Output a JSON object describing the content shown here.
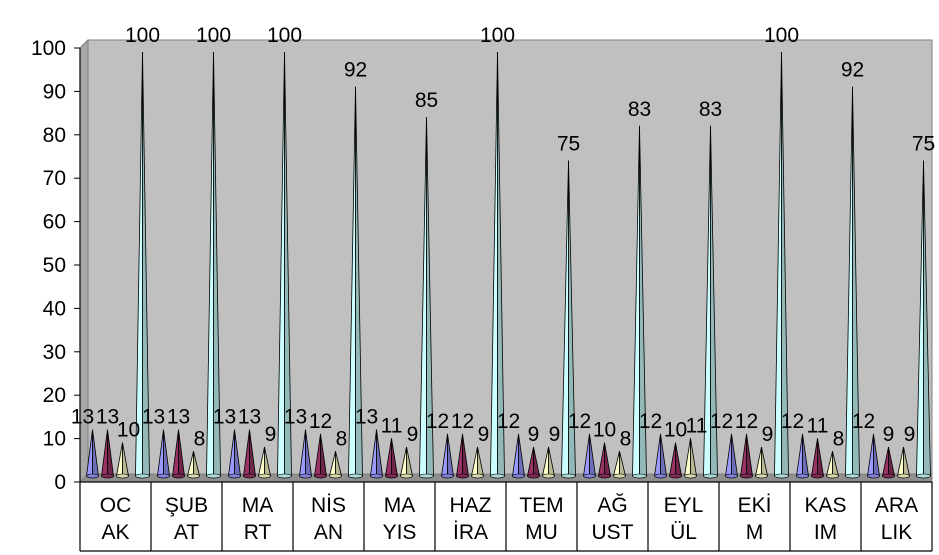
{
  "chart_data": {
    "type": "bar",
    "bar_shape": "cone",
    "categories": [
      [
        "OC",
        "AK"
      ],
      [
        "ŞUB",
        "AT"
      ],
      [
        "MA",
        "RT"
      ],
      [
        "NİS",
        "AN"
      ],
      [
        "MA",
        "YIS"
      ],
      [
        "HAZ",
        "İRA"
      ],
      [
        "TEM",
        "MU"
      ],
      [
        "AĞ",
        "UST"
      ],
      [
        "EYL",
        "ÜL"
      ],
      [
        "EKİ",
        "M"
      ],
      [
        "KAS",
        "IM"
      ],
      [
        "ARA",
        "LIK"
      ]
    ],
    "series": [
      {
        "color": "#9999ff",
        "values": [
          13,
          13,
          13,
          13,
          13,
          12,
          12,
          12,
          12,
          12,
          12,
          12
        ]
      },
      {
        "color": "#993366",
        "values": [
          13,
          13,
          13,
          12,
          11,
          12,
          9,
          10,
          10,
          12,
          11,
          9
        ]
      },
      {
        "color": "#ffffcc",
        "values": [
          10,
          8,
          9,
          8,
          9,
          9,
          9,
          8,
          11,
          9,
          8,
          9
        ]
      },
      {
        "color": "#ccffff",
        "values": [
          100,
          100,
          100,
          92,
          85,
          100,
          75,
          83,
          83,
          100,
          92,
          75
        ]
      }
    ],
    "data_labels": [
      [
        "13",
        "13",
        "10",
        "100"
      ],
      [
        "13",
        "13",
        "8",
        "100"
      ],
      [
        "13",
        "13",
        "9",
        "100"
      ],
      [
        "13",
        "12",
        "8",
        "92"
      ],
      [
        "13",
        "11",
        "9",
        "85"
      ],
      [
        "12",
        "12",
        "9",
        "100"
      ],
      [
        "12",
        "9",
        "9",
        "75"
      ],
      [
        "12",
        "10",
        "8",
        "83"
      ],
      [
        "12",
        "10",
        "11",
        "83"
      ],
      [
        "12",
        "12",
        "9",
        "100"
      ],
      [
        "12",
        "11",
        "8",
        "92"
      ],
      [
        "12",
        "9",
        "9",
        "75"
      ]
    ],
    "ylim": [
      0,
      100
    ],
    "yticks": [
      "0",
      "10",
      "20",
      "30",
      "40",
      "50",
      "60",
      "70",
      "80",
      "90",
      "100"
    ],
    "wall_color": "#c0c0c0",
    "grid": false,
    "legend": "none"
  }
}
